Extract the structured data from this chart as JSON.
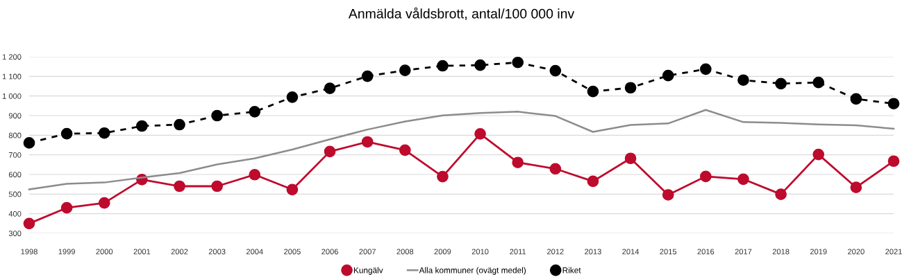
{
  "chart_data": {
    "type": "line",
    "title": "Anmälda våldsbrott, antal/100 000 inv",
    "categories": [
      "1998",
      "1999",
      "2000",
      "2001",
      "2002",
      "2003",
      "2004",
      "2005",
      "2006",
      "2007",
      "2008",
      "2009",
      "2010",
      "2011",
      "2012",
      "2013",
      "2014",
      "2015",
      "2016",
      "2017",
      "2018",
      "2019",
      "2020",
      "2021"
    ],
    "series": [
      {
        "name": "Kungälv",
        "color": "#be0a2d",
        "marker": "circle",
        "line_style": "solid",
        "values": [
          350,
          430,
          455,
          574,
          540,
          540,
          599,
          523,
          717,
          766,
          724,
          589,
          807,
          661,
          629,
          565,
          682,
          496,
          590,
          576,
          499,
          702,
          534,
          668
        ]
      },
      {
        "name": "Alla kommuner (ovägt medel)",
        "color": "#8c8c8c",
        "marker": "none",
        "line_style": "solid",
        "values": [
          524,
          552,
          559,
          584,
          607,
          651,
          682,
          727,
          779,
          829,
          870,
          901,
          913,
          920,
          898,
          817,
          852,
          860,
          929,
          867,
          863,
          855,
          851,
          833
        ]
      },
      {
        "name": "Riket",
        "color": "#000000",
        "marker": "circle",
        "line_style": "dashed",
        "values": [
          761,
          808,
          811,
          847,
          854,
          900,
          920,
          994,
          1039,
          1101,
          1131,
          1154,
          1157,
          1171,
          1129,
          1023,
          1042,
          1104,
          1137,
          1081,
          1063,
          1069,
          985,
          961
        ]
      }
    ],
    "ylim": [
      300,
      1200
    ],
    "yticks": [
      300,
      400,
      500,
      600,
      700,
      800,
      900,
      {
        "value": 1000,
        "label": "1 000"
      },
      {
        "value": 1100,
        "label": "1 100"
      },
      {
        "value": 1200,
        "label": "1 200"
      }
    ],
    "grid": "y",
    "legend": "bottom"
  }
}
